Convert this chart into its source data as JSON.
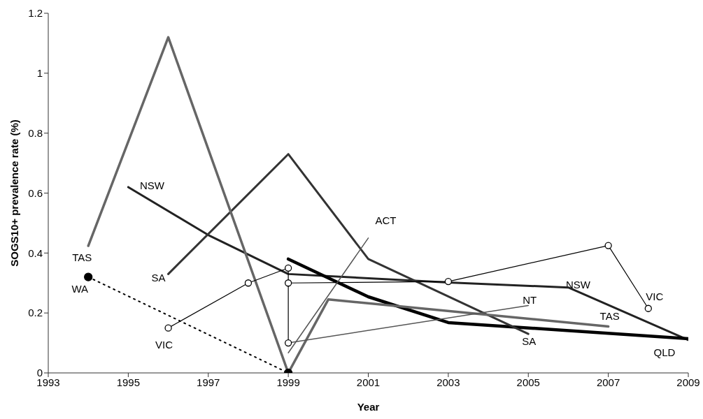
{
  "chart_data": {
    "type": "line",
    "xlabel": "Year",
    "ylabel": "SOGS10+ prevalence rate (%)",
    "xlim": [
      1993,
      2009
    ],
    "xticks": [
      1993,
      1995,
      1997,
      1999,
      2001,
      2003,
      2005,
      2007,
      2009
    ],
    "ylim": [
      0,
      1.2
    ],
    "yticks": [
      0,
      0.2,
      0.4,
      0.6,
      0.8,
      1,
      1.2
    ],
    "grid": false,
    "series": [
      {
        "name": "NSW",
        "color": "#222222",
        "x": [
          1995,
          1997,
          1999,
          2003,
          2006,
          2009
        ],
        "values": [
          0.62,
          0.46,
          0.33,
          0.302,
          0.285,
          0.11
        ],
        "marker": "none"
      },
      {
        "name": "QLD",
        "color": "#000000",
        "x": [
          1999,
          2001,
          2003,
          2009
        ],
        "values": [
          0.38,
          0.254,
          0.168,
          0.114
        ],
        "marker": "none"
      },
      {
        "name": "SA",
        "color": "#333333",
        "x": [
          1996,
          1999,
          2001,
          2005
        ],
        "values": [
          0.33,
          0.73,
          0.38,
          0.13
        ],
        "marker": "none"
      },
      {
        "name": "TAS",
        "color": "#666666",
        "x": [
          1994,
          1996,
          1999,
          2000,
          2007
        ],
        "values": [
          0.424,
          1.12,
          0,
          0.245,
          0.155
        ],
        "marker": "none"
      },
      {
        "name": "WA",
        "color": "#000000",
        "x": [
          1994,
          1999
        ],
        "values": [
          0.32,
          0
        ],
        "marker": "circle",
        "line_style": "dotted"
      },
      {
        "name": "VIC",
        "color": "#000000",
        "x": [
          1996,
          1998,
          1999,
          1999,
          1999,
          2003,
          2007,
          2008
        ],
        "values": [
          0.15,
          0.3,
          0.35,
          0.1,
          0.3,
          0.305,
          0.425,
          0.215
        ],
        "marker": "circle"
      },
      {
        "name": "NT",
        "color": "#555555",
        "x": [
          1999,
          2005
        ],
        "values": [
          0.1,
          0.225
        ],
        "marker": "none"
      },
      {
        "name": "ACT",
        "color": "#555555",
        "x": [
          1999,
          2001
        ],
        "values": [
          0.067,
          0.45
        ],
        "marker": "none"
      }
    ]
  }
}
